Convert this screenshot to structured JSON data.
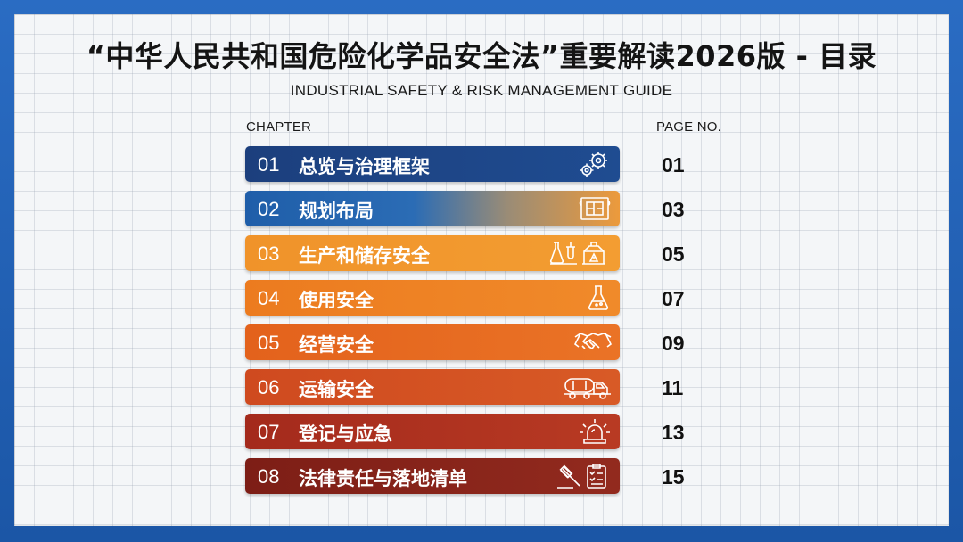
{
  "header": {
    "title": "“中华人民共和国危险化学品安全法”重要解读2026版 - 目录",
    "subtitle": "INDUSTRIAL SAFETY & RISK MANAGEMENT GUIDE"
  },
  "columns": {
    "chapter": "CHAPTER",
    "page": "PAGE NO."
  },
  "toc": [
    {
      "num": "01",
      "title": "总览与治理框架",
      "page": "01",
      "icon": "gears-icon",
      "color": "#1f4c91"
    },
    {
      "num": "02",
      "title": "规划布局",
      "page": "03",
      "icon": "blueprint-icon",
      "color": "#2b6cb5"
    },
    {
      "num": "03",
      "title": "生产和储存安全",
      "page": "05",
      "icon": "lab-tank-icon",
      "color": "#f39d32"
    },
    {
      "num": "04",
      "title": "使用安全",
      "page": "07",
      "icon": "flask-icon",
      "color": "#f08a2a"
    },
    {
      "num": "05",
      "title": "经营安全",
      "page": "09",
      "icon": "handshake-icon",
      "color": "#ea7326"
    },
    {
      "num": "06",
      "title": "运输安全",
      "page": "11",
      "icon": "tanker-truck-icon",
      "color": "#d85a26"
    },
    {
      "num": "07",
      "title": "登记与应急",
      "page": "13",
      "icon": "alarm-light-icon",
      "color": "#b83a23"
    },
    {
      "num": "08",
      "title": "法律责任与落地清单",
      "page": "15",
      "icon": "gavel-checklist-icon",
      "color": "#922a1e"
    }
  ]
}
